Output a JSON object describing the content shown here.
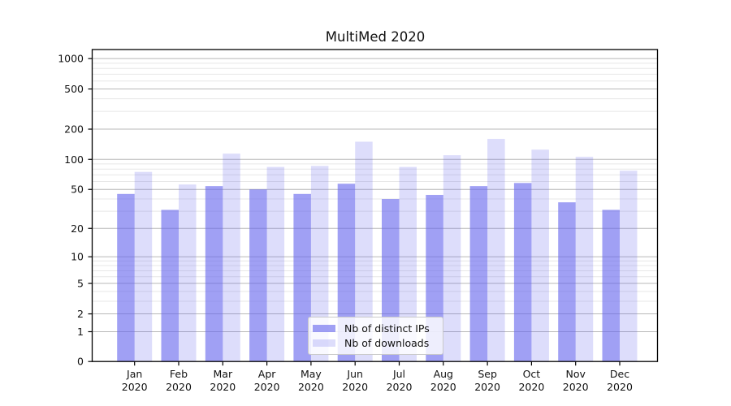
{
  "title": "MultiMed 2020",
  "chart_data": {
    "type": "bar",
    "title": "MultiMed 2020",
    "categories": [
      "Jan",
      "Feb",
      "Mar",
      "Apr",
      "May",
      "Jun",
      "Jul",
      "Aug",
      "Sep",
      "Oct",
      "Nov",
      "Dec"
    ],
    "year_label": "2020",
    "series": [
      {
        "name": "Nb of distinct IPs",
        "color": "rgba(102,102,238,0.62)",
        "values": [
          45,
          31,
          54,
          50,
          45,
          57,
          40,
          44,
          54,
          58,
          37,
          31
        ]
      },
      {
        "name": "Nb of downloads",
        "color": "rgba(102,102,238,0.22)",
        "values": [
          75,
          56,
          114,
          84,
          86,
          150,
          84,
          110,
          160,
          125,
          106,
          77
        ]
      }
    ],
    "yscale": "log1p",
    "ylim": [
      0,
      1230
    ],
    "yticks": [
      0,
      1,
      2,
      5,
      10,
      20,
      50,
      100,
      200,
      500,
      1000
    ],
    "minor_yticks": [
      3,
      4,
      6,
      7,
      8,
      9,
      30,
      40,
      60,
      70,
      80,
      90,
      300,
      400,
      600,
      700,
      800,
      900
    ],
    "grid": true,
    "legend_position": "lower center",
    "grid_major_color": "#b8b8b8",
    "grid_minor_color": "#e7e7e7",
    "axis_color": "#000000",
    "text_color": "#111111"
  }
}
